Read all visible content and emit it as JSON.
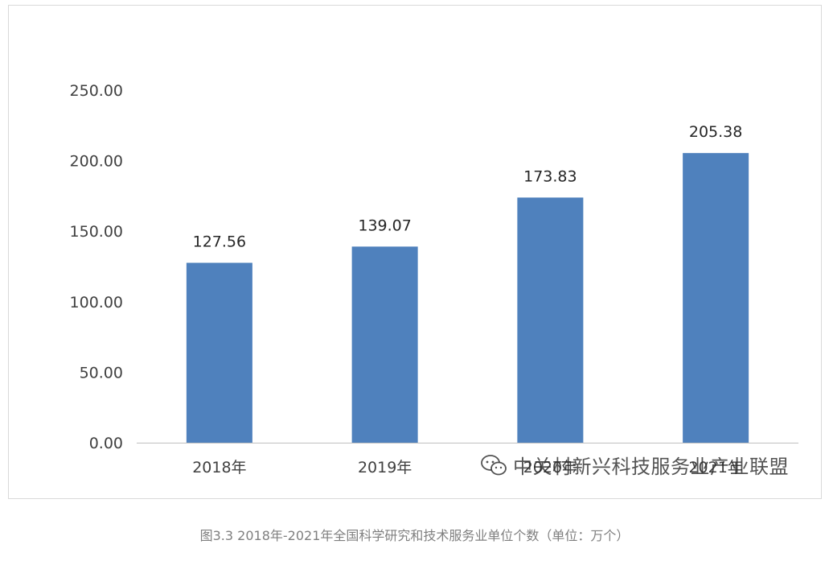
{
  "chart_data": {
    "type": "bar",
    "categories": [
      "2018年",
      "2019年",
      "2020年",
      "2021年"
    ],
    "values": [
      127.56,
      139.07,
      173.83,
      205.38
    ],
    "data_labels": [
      "127.56",
      "139.07",
      "173.83",
      "205.38"
    ],
    "ylim": [
      0,
      250
    ],
    "yticks": [
      0,
      50,
      100,
      150,
      200,
      250
    ],
    "ytick_labels": [
      "0.00",
      "50.00",
      "100.00",
      "150.00",
      "200.00",
      "250.00"
    ],
    "grid": false,
    "bar_color": "#4f81bd"
  },
  "caption": "图3.3 2018年-2021年全国科学研究和技术服务业单位个数（单位：万个）",
  "watermark": {
    "text": "中关村新兴科技服务业产业联盟",
    "icon": "wechat-icon"
  },
  "colors": {
    "axis_text": "#404040",
    "label_text": "#262626",
    "axis_line": "#bfbfbf",
    "frame_border": "#d9d9d9",
    "caption_text": "#7f7f7f"
  }
}
